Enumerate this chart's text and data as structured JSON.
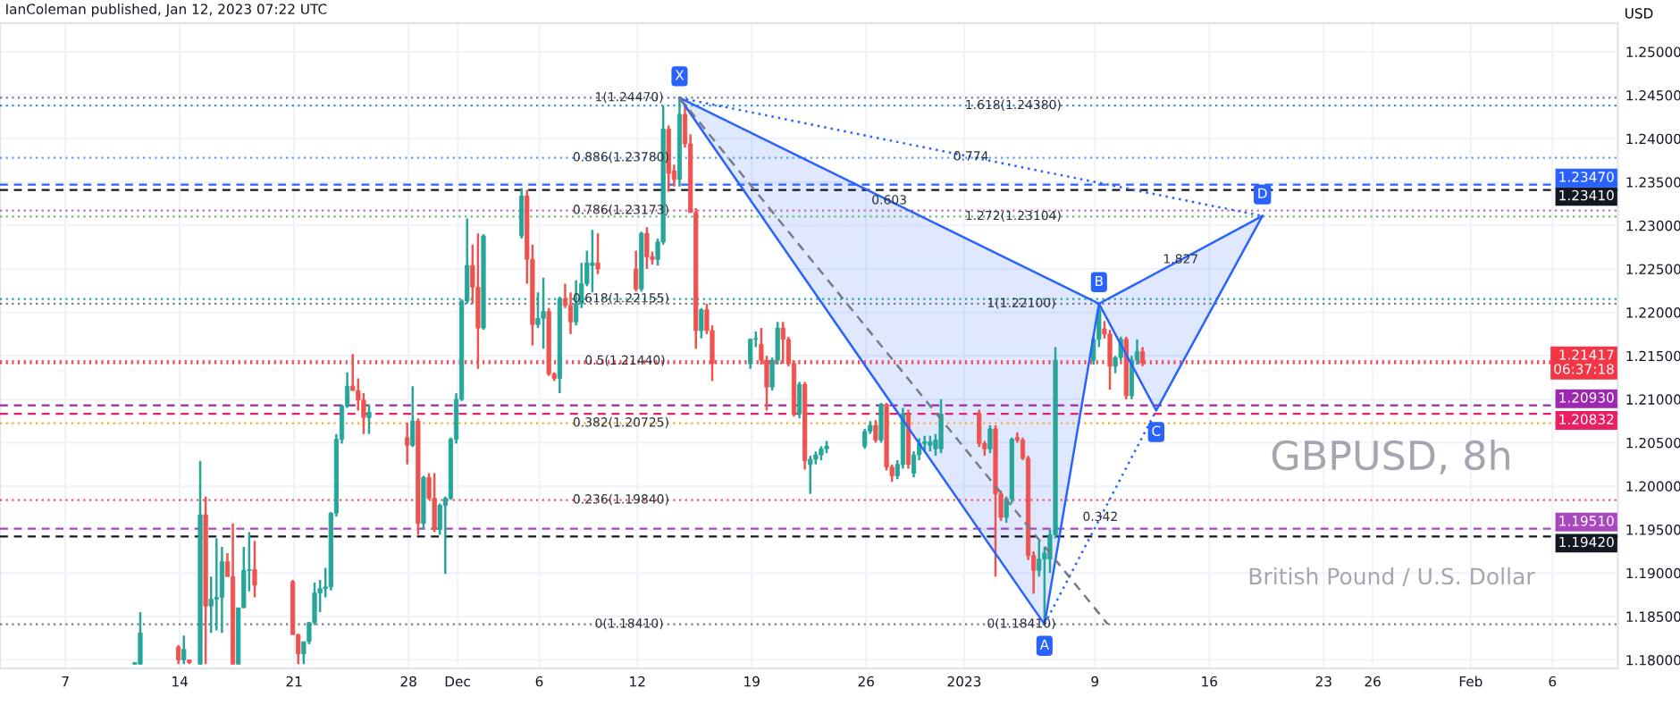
{
  "chart_data": {
    "type": "candlestick",
    "title": "GBPUSD, 8h",
    "subtitle": "British Pound / U.S. Dollar",
    "ylabel": "USD",
    "annotations": [
      "IanColeman published, Jan 12, 2023 07:22 UTC",
      {
        "text": "1(1.24470)",
        "x": "2022-12-11T12:00",
        "y": 1.2447
      },
      {
        "text": "0.886(1.23780)",
        "x": "2022-12-11T00:00",
        "y": 1.2378
      },
      {
        "text": "0.786(1.23173)",
        "x": "2022-12-11T00:00",
        "y": 1.23173
      },
      {
        "text": "0.618(1.22155)",
        "x": "2022-12-11T00:00",
        "y": 1.22155
      },
      {
        "text": "0.5(1.21440)",
        "x": "2022-12-11T06:00",
        "y": 1.2144
      },
      {
        "text": "0.382(1.20725)",
        "x": "2022-12-11T00:00",
        "y": 1.20725
      },
      {
        "text": "0.236(1.19840)",
        "x": "2022-12-11T00:00",
        "y": 1.1984
      },
      {
        "text": "0(1.18410)",
        "x": "2022-12-11T12:00",
        "y": 1.1841
      },
      {
        "text": "1.618(1.24380)",
        "x": "2023-01-04T00:00",
        "y": 1.2438
      },
      {
        "text": "1.272(1.23104)",
        "x": "2023-01-04T00:00",
        "y": 1.23104
      },
      {
        "text": "1(1.22100)",
        "x": "2023-01-04T12:00",
        "y": 1.221
      },
      {
        "text": "0(1.18410)",
        "x": "2023-01-04T12:00",
        "y": 1.1841
      },
      {
        "text": "0.603",
        "x": "2022-12-27T10:00",
        "y": 1.23285
      },
      {
        "text": "0.774",
        "x": "2023-01-01T10:00",
        "y": 1.2379
      },
      {
        "text": "1.827",
        "x": "2023-01-14T06:00",
        "y": 1.22605
      },
      {
        "text": "0.342",
        "x": "2023-01-09T08:00",
        "y": 1.1964
      }
    ],
    "x": [
      "2022-11-11T06:00",
      "2022-11-11T14:00",
      "2022-11-13T22:00",
      "2022-11-14T06:00",
      "2022-11-14T14:00",
      "2022-11-15T06:00",
      "2022-11-15T14:00",
      "2022-11-15T22:00",
      "2022-11-16T06:00",
      "2022-11-16T14:00",
      "2022-11-16T22:00",
      "2022-11-17T06:00",
      "2022-11-17T14:00",
      "2022-11-17T22:00",
      "2022-11-18T06:00",
      "2022-11-18T14:00",
      "2022-11-20T22:00",
      "2022-11-21T06:00",
      "2022-11-21T14:00",
      "2022-11-21T22:00",
      "2022-11-22T06:00",
      "2022-11-22T14:00",
      "2022-11-22T22:00",
      "2022-11-23T06:00",
      "2022-11-23T14:00",
      "2022-11-23T22:00",
      "2022-11-24T06:00",
      "2022-11-24T14:00",
      "2022-11-24T22:00",
      "2022-11-25T06:00",
      "2022-11-25T14:00",
      "2022-11-27T22:00",
      "2022-11-28T06:00",
      "2022-11-28T14:00",
      "2022-11-28T22:00",
      "2022-11-29T06:00",
      "2022-11-29T14:00",
      "2022-11-29T22:00",
      "2022-11-30T06:00",
      "2022-11-30T14:00",
      "2022-11-30T22:00",
      "2022-12-01T06:00",
      "2022-12-01T14:00",
      "2022-12-01T22:00",
      "2022-12-02T06:00",
      "2022-12-02T14:00",
      "2022-12-04T22:00",
      "2022-12-05T06:00",
      "2022-12-05T14:00",
      "2022-12-05T22:00",
      "2022-12-06T06:00",
      "2022-12-06T14:00",
      "2022-12-06T22:00",
      "2022-12-07T06:00",
      "2022-12-07T14:00",
      "2022-12-07T22:00",
      "2022-12-08T06:00",
      "2022-12-08T14:00",
      "2022-12-08T22:00",
      "2022-12-09T06:00",
      "2022-12-09T14:00",
      "2022-12-11T22:00",
      "2022-12-12T06:00",
      "2022-12-12T14:00",
      "2022-12-12T22:00",
      "2022-12-13T06:00",
      "2022-12-13T14:00",
      "2022-12-13T22:00",
      "2022-12-14T06:00",
      "2022-12-14T14:00",
      "2022-12-14T22:00",
      "2022-12-15T06:00",
      "2022-12-15T14:00",
      "2022-12-15T22:00",
      "2022-12-16T06:00",
      "2022-12-16T14:00",
      "2022-12-18T22:00",
      "2022-12-19T06:00",
      "2022-12-19T14:00",
      "2022-12-19T22:00",
      "2022-12-20T06:00",
      "2022-12-20T14:00",
      "2022-12-20T22:00",
      "2022-12-21T06:00",
      "2022-12-21T14:00",
      "2022-12-21T22:00",
      "2022-12-22T06:00",
      "2022-12-22T14:00",
      "2022-12-22T22:00",
      "2022-12-23T06:00",
      "2022-12-23T14:00",
      "2022-12-25T22:00",
      "2022-12-26T06:00",
      "2022-12-26T14:00",
      "2022-12-26T22:00",
      "2022-12-27T06:00",
      "2022-12-27T14:00",
      "2022-12-27T22:00",
      "2022-12-28T06:00",
      "2022-12-28T14:00",
      "2022-12-28T22:00",
      "2022-12-29T06:00",
      "2022-12-29T14:00",
      "2022-12-29T22:00",
      "2022-12-30T06:00",
      "2022-12-30T14:00",
      "2023-01-01T22:00",
      "2023-01-02T06:00",
      "2023-01-02T14:00",
      "2023-01-02T22:00",
      "2023-01-03T06:00",
      "2023-01-03T14:00",
      "2023-01-03T22:00",
      "2023-01-04T06:00",
      "2023-01-04T14:00",
      "2023-01-04T22:00",
      "2023-01-05T06:00",
      "2023-01-05T14:00",
      "2023-01-05T22:00",
      "2023-01-06T06:00",
      "2023-01-06T14:00",
      "2023-01-08T22:00",
      "2023-01-09T06:00",
      "2023-01-09T14:00",
      "2023-01-09T22:00",
      "2023-01-10T06:00",
      "2023-01-10T14:00",
      "2023-01-10T22:00",
      "2023-01-11T06:00",
      "2023-01-11T14:00",
      "2023-01-11T22:00"
    ],
    "ohlc": [
      [
        1.1795,
        1.1797,
        1.1795,
        1.1797
      ],
      [
        1.1795,
        1.1855,
        1.1795,
        1.1831
      ],
      [
        1.1815,
        1.1817,
        1.1795,
        1.18
      ],
      [
        1.18,
        1.1828,
        1.1795,
        1.1812
      ],
      [
        1.18,
        1.18,
        1.1795,
        1.1797
      ],
      [
        1.1795,
        1.2029,
        1.1795,
        1.1967
      ],
      [
        1.1967,
        1.1988,
        1.1795,
        1.1862
      ],
      [
        1.1862,
        1.1896,
        1.1831,
        1.187
      ],
      [
        1.187,
        1.194,
        1.1834,
        1.1872
      ],
      [
        1.1872,
        1.193,
        1.1831,
        1.1913
      ],
      [
        1.1913,
        1.1923,
        1.1896,
        1.1896
      ],
      [
        1.1896,
        1.1957,
        1.1795,
        1.1795
      ],
      [
        1.1795,
        1.186,
        1.1795,
        1.186
      ],
      [
        1.186,
        1.193,
        1.186,
        1.1903
      ],
      [
        1.1903,
        1.1947,
        1.1879,
        1.1904
      ],
      [
        1.1904,
        1.1937,
        1.1872,
        1.1886
      ],
      [
        1.189,
        1.1892,
        1.1829,
        1.1829
      ],
      [
        1.1829,
        1.183,
        1.1795,
        1.1807
      ],
      [
        1.1807,
        1.1821,
        1.1795,
        1.1821
      ],
      [
        1.1821,
        1.1843,
        1.1818,
        1.1843
      ],
      [
        1.1843,
        1.1889,
        1.184,
        1.1877
      ],
      [
        1.1877,
        1.1892,
        1.1855,
        1.1882
      ],
      [
        1.1882,
        1.1906,
        1.1872,
        1.1884
      ],
      [
        1.1884,
        1.197,
        1.188,
        1.1969
      ],
      [
        1.1969,
        1.206,
        1.1965,
        1.2054
      ],
      [
        1.2054,
        1.2094,
        1.2049,
        1.2092
      ],
      [
        1.2092,
        1.2131,
        1.209,
        1.2115
      ],
      [
        1.2115,
        1.2152,
        1.211,
        1.211
      ],
      [
        1.211,
        1.2124,
        1.2087,
        1.2099
      ],
      [
        1.2099,
        1.2107,
        1.206,
        1.2079
      ],
      [
        1.2079,
        1.2094,
        1.206,
        1.2085
      ],
      [
        1.2056,
        1.2073,
        1.2025,
        1.2047
      ],
      [
        1.2047,
        1.2115,
        1.2045,
        1.2075
      ],
      [
        1.2075,
        1.2078,
        1.1944,
        1.1957
      ],
      [
        1.1957,
        1.2012,
        1.195,
        1.201
      ],
      [
        1.201,
        1.2015,
        1.1984,
        1.1986
      ],
      [
        1.1986,
        1.2015,
        1.1947,
        1.195
      ],
      [
        1.195,
        1.198,
        1.1944,
        1.1978
      ],
      [
        1.1978,
        1.1988,
        1.1899,
        1.1986
      ],
      [
        1.1986,
        1.2056,
        1.1984,
        1.2054
      ],
      [
        1.2054,
        1.2107,
        1.2049,
        1.21
      ],
      [
        1.21,
        1.2215,
        1.2098,
        1.2213
      ],
      [
        1.2213,
        1.2308,
        1.221,
        1.2254
      ],
      [
        1.2254,
        1.2278,
        1.221,
        1.2229
      ],
      [
        1.2229,
        1.2291,
        1.2135,
        1.2182
      ],
      [
        1.2182,
        1.229,
        1.218,
        1.2288
      ],
      [
        1.2288,
        1.2343,
        1.2285,
        1.2334
      ],
      [
        1.2334,
        1.2341,
        1.2233,
        1.2261
      ],
      [
        1.2261,
        1.2278,
        1.2162,
        1.2186
      ],
      [
        1.2186,
        1.2223,
        1.2182,
        1.2193
      ],
      [
        1.2193,
        1.224,
        1.2158,
        1.2201
      ],
      [
        1.2201,
        1.2205,
        1.2127,
        1.2129
      ],
      [
        1.2129,
        1.2131,
        1.2121,
        1.2124
      ],
      [
        1.2124,
        1.2218,
        1.2107,
        1.2216
      ],
      [
        1.2216,
        1.2233,
        1.2205,
        1.2208
      ],
      [
        1.2208,
        1.2223,
        1.2175,
        1.2189
      ],
      [
        1.2189,
        1.2237,
        1.2185,
        1.221
      ],
      [
        1.221,
        1.2257,
        1.2205,
        1.2233
      ],
      [
        1.2233,
        1.2271,
        1.223,
        1.2257
      ],
      [
        1.2254,
        1.2295,
        1.2223,
        1.2257
      ],
      [
        1.2257,
        1.2291,
        1.2244,
        1.225
      ],
      [
        1.225,
        1.2271,
        1.2224,
        1.2227
      ],
      [
        1.2227,
        1.2293,
        1.2224,
        1.2291
      ],
      [
        1.2291,
        1.2298,
        1.225,
        1.2264
      ],
      [
        1.2264,
        1.227,
        1.2255,
        1.2261
      ],
      [
        1.2261,
        1.2285,
        1.2254,
        1.2281
      ],
      [
        1.2281,
        1.2438,
        1.2278,
        1.2411
      ],
      [
        1.2411,
        1.2415,
        1.2339,
        1.236
      ],
      [
        1.2363,
        1.237,
        1.2345,
        1.2353
      ],
      [
        1.2353,
        1.2447,
        1.2345,
        1.2428
      ],
      [
        1.2428,
        1.244,
        1.239,
        1.2394
      ],
      [
        1.2394,
        1.2405,
        1.2315,
        1.2315
      ],
      [
        1.2315,
        1.232,
        1.2158,
        1.2179
      ],
      [
        1.2179,
        1.2205,
        1.217,
        1.2203
      ],
      [
        1.2203,
        1.221,
        1.2175,
        1.2179
      ],
      [
        1.2179,
        1.2185,
        1.2121,
        1.2141
      ],
      [
        1.2141,
        1.217,
        1.2135,
        1.2169
      ],
      [
        1.2169,
        1.2178,
        1.216,
        1.217
      ],
      [
        1.2163,
        1.2182,
        1.214,
        1.2145
      ],
      [
        1.2145,
        1.215,
        1.2087,
        1.2114
      ],
      [
        1.2114,
        1.2148,
        1.211,
        1.2145
      ],
      [
        1.2145,
        1.2189,
        1.214,
        1.2182
      ],
      [
        1.2182,
        1.2189,
        1.2141,
        1.2169
      ],
      [
        1.2169,
        1.2172,
        1.2138,
        1.2141
      ],
      [
        1.2141,
        1.2145,
        1.208,
        1.2083
      ],
      [
        1.2083,
        1.212,
        1.2078,
        1.2117
      ],
      [
        1.2117,
        1.212,
        1.2019,
        1.2029
      ],
      [
        1.2025,
        1.2035,
        1.1991,
        1.2031
      ],
      [
        1.2031,
        1.204,
        1.2025,
        1.2036
      ],
      [
        1.2036,
        1.2046,
        1.203,
        1.2043
      ],
      [
        1.2043,
        1.2052,
        1.2038,
        1.2046
      ],
      [
        1.2046,
        1.2066,
        1.2043,
        1.2063
      ],
      [
        1.2063,
        1.2075,
        1.206,
        1.207
      ],
      [
        1.207,
        1.2076,
        1.205,
        1.2053
      ],
      [
        1.2053,
        1.2096,
        1.205,
        1.2094
      ],
      [
        1.2094,
        1.2096,
        1.2018,
        1.2022
      ],
      [
        1.2022,
        1.2025,
        1.2005,
        1.2012
      ],
      [
        1.2012,
        1.203,
        1.2008,
        1.2025
      ],
      [
        1.2025,
        1.209,
        1.202,
        1.2083
      ],
      [
        1.2083,
        1.2088,
        1.202,
        1.2025
      ],
      [
        1.2015,
        1.204,
        1.201,
        1.2036
      ],
      [
        1.2036,
        1.2055,
        1.203,
        1.2049
      ],
      [
        1.2049,
        1.2058,
        1.204,
        1.2051
      ],
      [
        1.2047,
        1.2058,
        1.204,
        1.2051
      ],
      [
        1.2043,
        1.206,
        1.2035,
        1.2053
      ],
      [
        1.2043,
        1.21,
        1.2038,
        1.2083
      ],
      [
        1.2083,
        1.2088,
        1.2045,
        1.2049
      ],
      [
        1.2049,
        1.2052,
        1.2035,
        1.2043
      ],
      [
        1.2043,
        1.207,
        1.2038,
        1.2066
      ],
      [
        1.2066,
        1.207,
        1.1896,
        1.1991
      ],
      [
        1.1991,
        1.1995,
        1.196,
        1.1964
      ],
      [
        1.1964,
        1.1988,
        1.1958,
        1.1985
      ],
      [
        1.1985,
        1.2056,
        1.198,
        1.2054
      ],
      [
        1.2056,
        1.2062,
        1.205,
        1.2053
      ],
      [
        1.2053,
        1.2056,
        1.203,
        1.2032
      ],
      [
        1.2032,
        1.2035,
        1.1915,
        1.192
      ],
      [
        1.192,
        1.1925,
        1.1876,
        1.1903
      ],
      [
        1.1903,
        1.1937,
        1.1896,
        1.1916
      ],
      [
        1.1916,
        1.193,
        1.1841,
        1.1923
      ],
      [
        1.1916,
        1.195,
        1.19,
        1.1944
      ],
      [
        1.1944,
        1.216,
        1.194,
        1.2145
      ],
      [
        1.2145,
        1.2172,
        1.214,
        1.2169
      ],
      [
        1.2169,
        1.221,
        1.216,
        1.2203
      ],
      [
        1.2181,
        1.219,
        1.217,
        1.2175
      ],
      [
        1.2175,
        1.218,
        1.2111,
        1.2138
      ],
      [
        1.2138,
        1.215,
        1.213,
        1.2148
      ],
      [
        1.2148,
        1.2172,
        1.2145,
        1.2169
      ],
      [
        1.2169,
        1.2172,
        1.21,
        1.2104
      ],
      [
        1.2104,
        1.215,
        1.21,
        1.2145
      ],
      [
        1.2145,
        1.2169,
        1.214,
        1.2155
      ],
      [
        1.2155,
        1.216,
        1.2138,
        1.2142
      ]
    ],
    "colors": [
      "#26a69a",
      "#26a69a",
      "#ef5350",
      "#26a69a",
      "#ef5350",
      "#26a69a",
      "#ef5350",
      "#26a69a",
      "#26a69a",
      "#26a69a",
      "#ef5350",
      "#ef5350",
      "#26a69a",
      "#26a69a",
      "#26a69a",
      "#ef5350",
      "#ef5350",
      "#ef5350",
      "#26a69a",
      "#26a69a",
      "#26a69a",
      "#26a69a",
      "#26a69a",
      "#26a69a",
      "#26a69a",
      "#26a69a",
      "#26a69a",
      "#ef5350",
      "#ef5350",
      "#ef5350",
      "#26a69a",
      "#ef5350",
      "#26a69a",
      "#ef5350",
      "#26a69a",
      "#ef5350",
      "#ef5350",
      "#26a69a",
      "#26a69a",
      "#26a69a",
      "#26a69a",
      "#26a69a",
      "#26a69a",
      "#ef5350",
      "#ef5350",
      "#26a69a",
      "#26a69a",
      "#ef5350",
      "#ef5350",
      "#26a69a",
      "#26a69a",
      "#ef5350",
      "#ef5350",
      "#26a69a",
      "#ef5350",
      "#ef5350",
      "#26a69a",
      "#26a69a",
      "#26a69a",
      "#26a69a",
      "#ef5350",
      "#ef5350",
      "#26a69a",
      "#ef5350",
      "#ef5350",
      "#26a69a",
      "#26a69a",
      "#ef5350",
      "#ef5350",
      "#26a69a",
      "#ef5350",
      "#ef5350",
      "#ef5350",
      "#26a69a",
      "#ef5350",
      "#ef5350",
      "#26a69a",
      "#26a69a",
      "#ef5350",
      "#ef5350",
      "#26a69a",
      "#26a69a",
      "#ef5350",
      "#ef5350",
      "#ef5350",
      "#26a69a",
      "#ef5350",
      "#26a69a",
      "#26a69a",
      "#26a69a",
      "#26a69a",
      "#26a69a",
      "#26a69a",
      "#ef5350",
      "#26a69a",
      "#ef5350",
      "#ef5350",
      "#26a69a",
      "#26a69a",
      "#ef5350",
      "#26a69a",
      "#26a69a",
      "#26a69a",
      "#26a69a",
      "#26a69a",
      "#26a69a",
      "#ef5350",
      "#ef5350",
      "#26a69a",
      "#ef5350",
      "#ef5350",
      "#26a69a",
      "#26a69a",
      "#ef5350",
      "#ef5350",
      "#ef5350",
      "#ef5350",
      "#26a69a",
      "#26a69a",
      "#26a69a",
      "#26a69a",
      "#26a69a",
      "#26a69a",
      "#ef5350",
      "#ef5350",
      "#26a69a",
      "#26a69a",
      "#ef5350",
      "#26a69a",
      "#26a69a",
      "#ef5350"
    ],
    "series": [
      {
        "type": "line",
        "color": "#2962ff",
        "x": [
          "2022-12-14T14:00",
          "2023-01-05T22:00",
          "2023-01-09T06:00",
          "2023-01-12T18:00",
          "2023-01-19T06:00"
        ],
        "values": [
          1.2447,
          1.1841,
          1.221,
          1.2087,
          1.2311
        ],
        "value_labels": [
          "X",
          "A",
          "B",
          "C",
          "D"
        ]
      },
      {
        "type": "line",
        "color": "#2962ff",
        "x": [
          "2022-12-14T14:00",
          "2023-01-09T06:00"
        ],
        "values": [
          1.2447,
          1.221
        ]
      },
      {
        "type": "line",
        "color": "#2962ff",
        "x": [
          "2023-01-09T06:00",
          "2023-01-19T06:00"
        ],
        "values": [
          1.221,
          1.2311
        ]
      },
      {
        "type": "line",
        "color": "#2962ff",
        "line_style": "dotted",
        "x": [
          "2023-01-05T22:00",
          "2023-01-12T18:00"
        ],
        "values": [
          1.1841,
          1.2087
        ]
      },
      {
        "type": "line",
        "color": "#2962ff",
        "line_style": "dotted",
        "x": [
          "2022-12-14T14:00",
          "2023-01-19T06:00"
        ],
        "values": [
          1.2447,
          1.2311
        ]
      },
      {
        "type": "line",
        "color": "#787b86",
        "line_style": "dashed",
        "x": [
          "2022-12-14T14:00",
          "2023-01-09T19:00"
        ],
        "values": [
          1.2447,
          1.1841
        ]
      }
    ],
    "xlim": [
      "2022-11-03",
      "2023-02-10"
    ],
    "ylim": [
      1.179,
      1.2533
    ],
    "xticks": [
      {
        "value": "2022-11-07",
        "label": "7"
      },
      {
        "value": "2022-11-14",
        "label": "14"
      },
      {
        "value": "2022-11-21",
        "label": "21"
      },
      {
        "value": "2022-11-28",
        "label": "28"
      },
      {
        "value": "2022-12-01",
        "label": "Dec"
      },
      {
        "value": "2022-12-06",
        "label": "6"
      },
      {
        "value": "2022-12-12",
        "label": "12"
      },
      {
        "value": "2022-12-19",
        "label": "19"
      },
      {
        "value": "2022-12-26",
        "label": "26"
      },
      {
        "value": "2023-01-01",
        "label": "2023"
      },
      {
        "value": "2023-01-09",
        "label": "9"
      },
      {
        "value": "2023-01-16",
        "label": "16"
      },
      {
        "value": "2023-01-23",
        "label": "23"
      },
      {
        "value": "2023-01-26",
        "label": "26"
      },
      {
        "value": "2023-02-01",
        "label": "Feb"
      },
      {
        "value": "2023-02-06",
        "label": "6"
      }
    ],
    "yticks": [
      {
        "value": 1.18,
        "label": "1.18000"
      },
      {
        "value": 1.185,
        "label": "1.18500"
      },
      {
        "value": 1.19,
        "label": "1.19000"
      },
      {
        "value": 1.195,
        "label": "1.19500"
      },
      {
        "value": 1.2,
        "label": "1.20000"
      },
      {
        "value": 1.205,
        "label": "1.20500"
      },
      {
        "value": 1.21,
        "label": "1.21000"
      },
      {
        "value": 1.215,
        "label": "1.21500"
      },
      {
        "value": 1.22,
        "label": "1.22000"
      },
      {
        "value": 1.225,
        "label": "1.22500"
      },
      {
        "value": 1.23,
        "label": "1.23000"
      },
      {
        "value": 1.235,
        "label": "1.23500"
      },
      {
        "value": 1.24,
        "label": "1.24000"
      },
      {
        "value": 1.245,
        "label": "1.24500"
      },
      {
        "value": 1.25,
        "label": "1.25000"
      }
    ],
    "ref_lines": [
      {
        "axis": "y",
        "value": 1.2447,
        "color": "#787b86",
        "line_style": "dotted"
      },
      {
        "axis": "y",
        "value": 1.2378,
        "color": "#5b9cf6",
        "line_style": "dotted"
      },
      {
        "axis": "y",
        "value": 1.23173,
        "color": "#ba68c8",
        "line_style": "dotted"
      },
      {
        "axis": "y",
        "value": 1.22155,
        "color": "#26a69a",
        "line_style": "dotted"
      },
      {
        "axis": "y",
        "value": 1.2144,
        "color": "#f7525f",
        "line_style": "dotted"
      },
      {
        "axis": "y",
        "value": 1.20725,
        "color": "#ffa726",
        "line_style": "dotted"
      },
      {
        "axis": "y",
        "value": 1.1984,
        "color": "#f7525f",
        "line_style": "dotted"
      },
      {
        "axis": "y",
        "value": 1.1841,
        "color": "#787b86",
        "line_style": "dotted"
      },
      {
        "axis": "y",
        "value": 1.2438,
        "color": "#2196f3",
        "line_style": "dotted"
      },
      {
        "axis": "y",
        "value": 1.23104,
        "color": "#66bb6a",
        "line_style": "dotted"
      },
      {
        "axis": "y",
        "value": 1.221,
        "color": "#787b86",
        "line_style": "dotted"
      },
      {
        "axis": "y",
        "value": 1.2347,
        "label": "1.23470",
        "color": "#2962ff",
        "line_style": "dashed"
      },
      {
        "axis": "y",
        "value": 1.2341,
        "label": "1.23410",
        "color": "#131722",
        "line_style": "dashed"
      },
      {
        "axis": "y",
        "value": 1.21417,
        "label": "1.21417\n06:37:18",
        "color": "#f23645",
        "line_style": "dotted"
      },
      {
        "axis": "y",
        "value": 1.2093,
        "label": "1.20930",
        "color": "#9c27b0",
        "line_style": "dashed"
      },
      {
        "axis": "y",
        "value": 1.20832,
        "label": "1.20832",
        "color": "#e91e63",
        "line_style": "dashed"
      },
      {
        "axis": "y",
        "value": 1.1951,
        "label": "1.19510",
        "color": "#ab47bc",
        "line_style": "dashed"
      },
      {
        "axis": "y",
        "value": 1.1942,
        "label": "1.19420",
        "color": "#131722",
        "line_style": "dashed"
      }
    ],
    "grid": true
  }
}
